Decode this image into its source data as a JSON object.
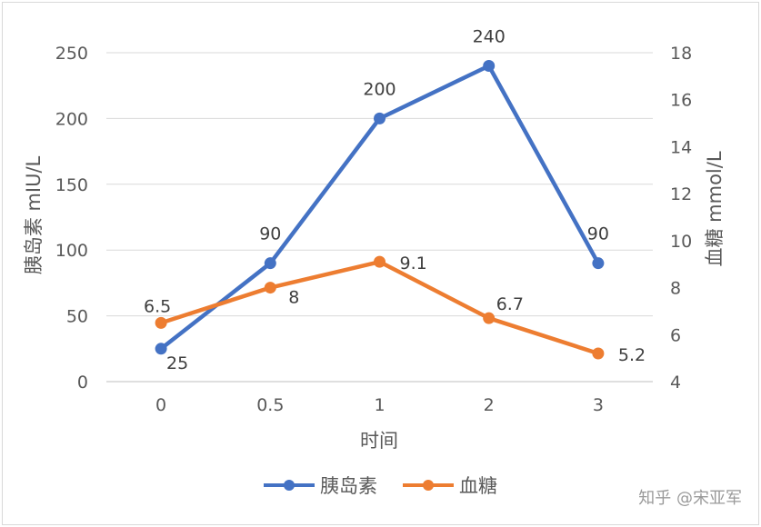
{
  "chart_data": {
    "type": "line",
    "xlabel": "时间",
    "categories": [
      "0",
      "0.5",
      "1",
      "2",
      "3"
    ],
    "y_left": {
      "label": "胰岛素 mIU/L",
      "range": [
        0,
        250
      ],
      "ticks": [
        0,
        50,
        100,
        150,
        200,
        250
      ]
    },
    "y_right": {
      "label": "血糖 mmol/L",
      "range": [
        4,
        18
      ],
      "ticks": [
        4,
        6,
        8,
        10,
        12,
        14,
        16,
        18
      ]
    },
    "grid": true,
    "legend_position": "bottom",
    "series": [
      {
        "name": "胰岛素",
        "axis": "left",
        "color": "#4472C4",
        "values": [
          25,
          90,
          200,
          240,
          90
        ]
      },
      {
        "name": "血糖",
        "axis": "right",
        "color": "#ED7D31",
        "values": [
          6.5,
          8,
          9.1,
          6.7,
          5.2
        ]
      }
    ]
  },
  "watermark": "知乎 @宋亚军"
}
